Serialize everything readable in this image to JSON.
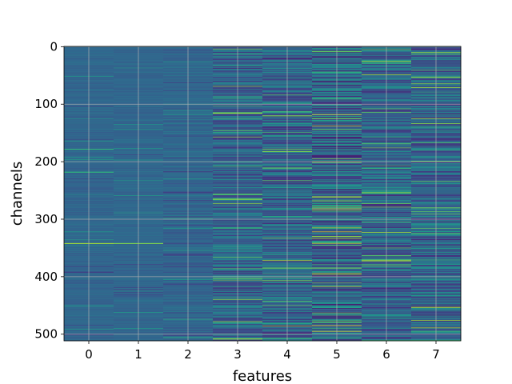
{
  "chart_data": {
    "type": "heatmap",
    "title": "",
    "xlabel": "features",
    "ylabel": "channels",
    "x_categories": [
      "0",
      "1",
      "2",
      "3",
      "4",
      "5",
      "6",
      "7"
    ],
    "y_ticks": [
      0,
      100,
      200,
      300,
      400,
      500
    ],
    "n_channels": 512,
    "ylim": [
      511.5,
      -0.5
    ],
    "grid": true,
    "colormap": "viridis",
    "base_color": "#3b528b",
    "feature_variation": [
      0.04,
      0.04,
      0.07,
      0.17,
      0.2,
      0.25,
      0.2,
      0.2
    ],
    "highlights": [
      {
        "feature": 0,
        "channel": 342,
        "level": 0.85
      },
      {
        "feature": 0,
        "channel": 178,
        "level": 0.65
      },
      {
        "feature": 0,
        "channel": 218,
        "level": 0.65
      },
      {
        "feature": 1,
        "channel": 342,
        "level": 0.8
      },
      {
        "feature": 3,
        "channel": 265,
        "level": 0.85
      },
      {
        "feature": 3,
        "channel": 508,
        "level": 0.85
      },
      {
        "feature": 4,
        "channel": 120,
        "level": 0.8
      },
      {
        "feature": 4,
        "channel": 182,
        "level": 0.8
      },
      {
        "feature": 5,
        "channel": 261,
        "level": 0.9
      },
      {
        "feature": 5,
        "channel": 8,
        "level": 0.75
      },
      {
        "feature": 5,
        "channel": 125,
        "level": 0.75
      },
      {
        "feature": 6,
        "channel": 372,
        "level": 0.9
      },
      {
        "feature": 6,
        "channel": 25,
        "level": 0.8
      },
      {
        "feature": 7,
        "channel": 453,
        "level": 0.85
      },
      {
        "feature": 7,
        "channel": 53,
        "level": 0.8
      },
      {
        "feature": 7,
        "channel": 280,
        "level": 0.75
      }
    ]
  }
}
